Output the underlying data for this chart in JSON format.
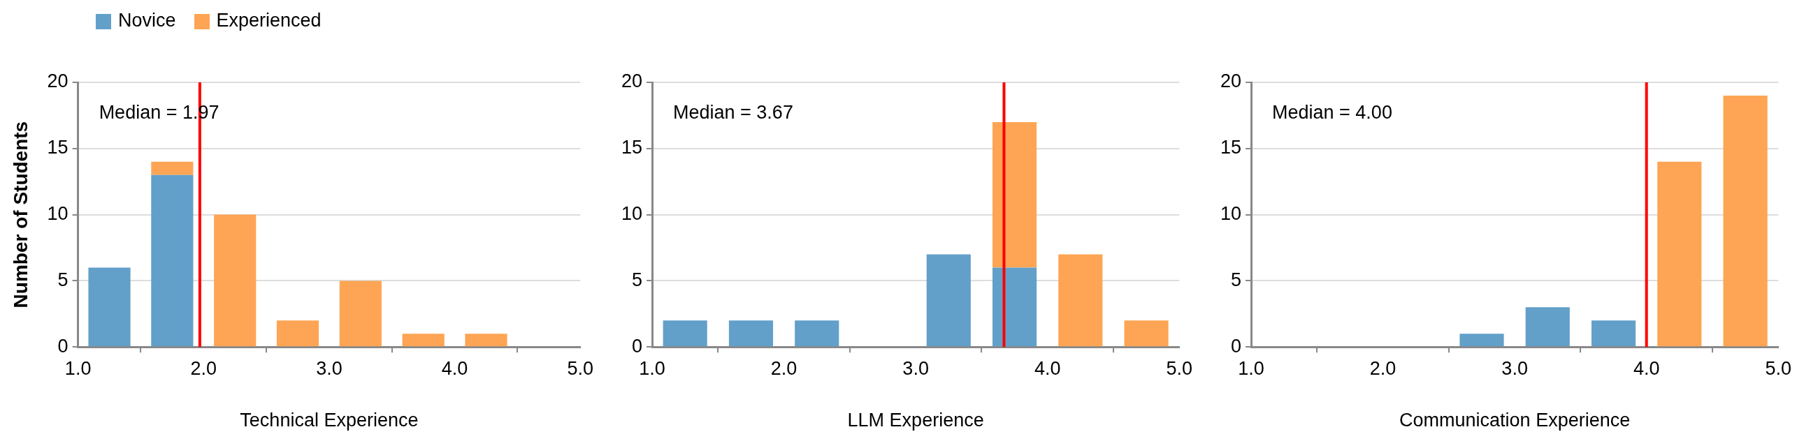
{
  "chart_data": [
    {
      "type": "bar",
      "xlabel": "Technical Experience",
      "ylabel": "Number of Students",
      "x": [
        1.25,
        1.75,
        2.25,
        2.75,
        3.25,
        3.75,
        4.25,
        4.75
      ],
      "stacked": true,
      "legend": "top left",
      "grid": "y",
      "series": [
        {
          "name": "Novice",
          "color": "#62a0ca",
          "values": [
            6,
            13,
            0,
            0,
            0,
            0,
            0,
            0
          ]
        },
        {
          "name": "Experienced",
          "color": "#fda554",
          "values": [
            0,
            1,
            10,
            2,
            5,
            1,
            1,
            0
          ]
        }
      ],
      "xlim": [
        1,
        5
      ],
      "xticks": [
        {
          "value": 1,
          "label": "1.0"
        },
        {
          "value": 2,
          "label": "2.0"
        },
        {
          "value": 3,
          "label": "3.0"
        },
        {
          "value": 4,
          "label": "4.0"
        },
        {
          "value": 5,
          "label": "5.0"
        }
      ],
      "ylim": [
        0,
        20
      ],
      "yticks": [
        0,
        5,
        10,
        15,
        20
      ],
      "annotations": [
        "Median = 1.97"
      ],
      "ref_lines": [
        {
          "axis": "x",
          "value": 1.97,
          "color": "#ff0000"
        }
      ]
    },
    {
      "type": "bar",
      "xlabel": "LLM Experience",
      "x": [
        1.25,
        1.75,
        2.25,
        2.75,
        3.25,
        3.75,
        4.25,
        4.75
      ],
      "stacked": true,
      "grid": "y",
      "series": [
        {
          "color": "#62a0ca",
          "values": [
            2,
            2,
            2,
            0,
            7,
            6,
            0,
            0
          ]
        },
        {
          "color": "#fda554",
          "values": [
            0,
            0,
            0,
            0,
            0,
            11,
            7,
            2
          ]
        }
      ],
      "xlim": [
        1,
        5
      ],
      "xticks": [
        {
          "value": 1,
          "label": "1.0"
        },
        {
          "value": 2,
          "label": "2.0"
        },
        {
          "value": 3,
          "label": "3.0"
        },
        {
          "value": 4,
          "label": "4.0"
        },
        {
          "value": 5,
          "label": "5.0"
        }
      ],
      "ylim": [
        0,
        20
      ],
      "yticks": [
        0,
        5,
        10,
        15,
        20
      ],
      "annotations": [
        "Median = 3.67"
      ],
      "ref_lines": [
        {
          "axis": "x",
          "value": 3.67,
          "color": "#ff0000"
        }
      ]
    },
    {
      "type": "bar",
      "xlabel": "Communication Experience",
      "x": [
        1.25,
        1.75,
        2.25,
        2.75,
        3.25,
        3.75,
        4.25,
        4.75
      ],
      "stacked": true,
      "grid": "y",
      "series": [
        {
          "color": "#62a0ca",
          "values": [
            0,
            0,
            0,
            1,
            3,
            2,
            0,
            0
          ]
        },
        {
          "color": "#fda554",
          "values": [
            0,
            0,
            0,
            0,
            0,
            0,
            14,
            19
          ]
        }
      ],
      "xlim": [
        1,
        5
      ],
      "xticks": [
        {
          "value": 1,
          "label": "1.0"
        },
        {
          "value": 2,
          "label": "2.0"
        },
        {
          "value": 3,
          "label": "3.0"
        },
        {
          "value": 4,
          "label": "4.0"
        },
        {
          "value": 5,
          "label": "5.0"
        }
      ],
      "ylim": [
        0,
        20
      ],
      "yticks": [
        0,
        5,
        10,
        15,
        20
      ],
      "annotations": [
        "Median = 4.00"
      ],
      "ref_lines": [
        {
          "axis": "x",
          "value": 4.0,
          "color": "#ff0000"
        }
      ]
    }
  ]
}
